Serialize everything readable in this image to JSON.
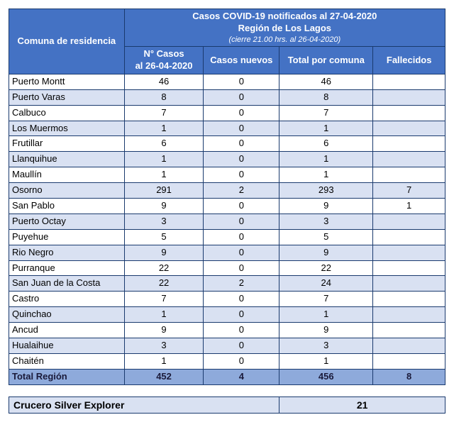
{
  "header": {
    "left": "Comuna de residencia",
    "top_line1": "Casos COVID-19 notificados al 27-04-2020",
    "top_line2": "Región de Los Lagos",
    "top_sub": "(cierre 21.00 hrs. al 26-04-2020)",
    "cols": [
      "N° Casos\nal 26-04-2020",
      "Casos nuevos",
      "Total por comuna",
      "Fallecidos"
    ]
  },
  "colors": {
    "header_bg": "#4472c4",
    "header_fg": "#ffffff",
    "row_even": "#ffffff",
    "row_odd": "#d9e1f2",
    "total_bg": "#8eaadb",
    "border": "#1a3a6e"
  },
  "rows": [
    {
      "comuna": "Puerto Montt",
      "casos": "46",
      "nuevos": "0",
      "total": "46",
      "fallecidos": ""
    },
    {
      "comuna": "Puerto Varas",
      "casos": "8",
      "nuevos": "0",
      "total": "8",
      "fallecidos": ""
    },
    {
      "comuna": "Calbuco",
      "casos": "7",
      "nuevos": "0",
      "total": "7",
      "fallecidos": ""
    },
    {
      "comuna": "Los Muermos",
      "casos": "1",
      "nuevos": "0",
      "total": "1",
      "fallecidos": ""
    },
    {
      "comuna": "Frutillar",
      "casos": "6",
      "nuevos": "0",
      "total": "6",
      "fallecidos": ""
    },
    {
      "comuna": "Llanquihue",
      "casos": "1",
      "nuevos": "0",
      "total": "1",
      "fallecidos": ""
    },
    {
      "comuna": "Maullín",
      "casos": "1",
      "nuevos": "0",
      "total": "1",
      "fallecidos": ""
    },
    {
      "comuna": "Osorno",
      "casos": "291",
      "nuevos": "2",
      "total": "293",
      "fallecidos": "7"
    },
    {
      "comuna": "San Pablo",
      "casos": "9",
      "nuevos": "0",
      "total": "9",
      "fallecidos": "1"
    },
    {
      "comuna": "Puerto Octay",
      "casos": "3",
      "nuevos": "0",
      "total": "3",
      "fallecidos": ""
    },
    {
      "comuna": "Puyehue",
      "casos": "5",
      "nuevos": "0",
      "total": "5",
      "fallecidos": ""
    },
    {
      "comuna": "Rio Negro",
      "casos": "9",
      "nuevos": "0",
      "total": "9",
      "fallecidos": ""
    },
    {
      "comuna": "Purranque",
      "casos": "22",
      "nuevos": "0",
      "total": "22",
      "fallecidos": ""
    },
    {
      "comuna": "San Juan de la Costa",
      "casos": "22",
      "nuevos": "2",
      "total": "24",
      "fallecidos": ""
    },
    {
      "comuna": "Castro",
      "casos": "7",
      "nuevos": "0",
      "total": "7",
      "fallecidos": ""
    },
    {
      "comuna": "Quinchao",
      "casos": "1",
      "nuevos": "0",
      "total": "1",
      "fallecidos": ""
    },
    {
      "comuna": "Ancud",
      "casos": "9",
      "nuevos": "0",
      "total": "9",
      "fallecidos": ""
    },
    {
      "comuna": "Hualaihue",
      "casos": "3",
      "nuevos": "0",
      "total": "3",
      "fallecidos": ""
    },
    {
      "comuna": "Chaitén",
      "casos": "1",
      "nuevos": "0",
      "total": "1",
      "fallecidos": ""
    }
  ],
  "total": {
    "label": "Total Región",
    "casos": "452",
    "nuevos": "4",
    "total": "456",
    "fallecidos": "8"
  },
  "footer": {
    "label": "Crucero Silver Explorer",
    "value": "21"
  }
}
